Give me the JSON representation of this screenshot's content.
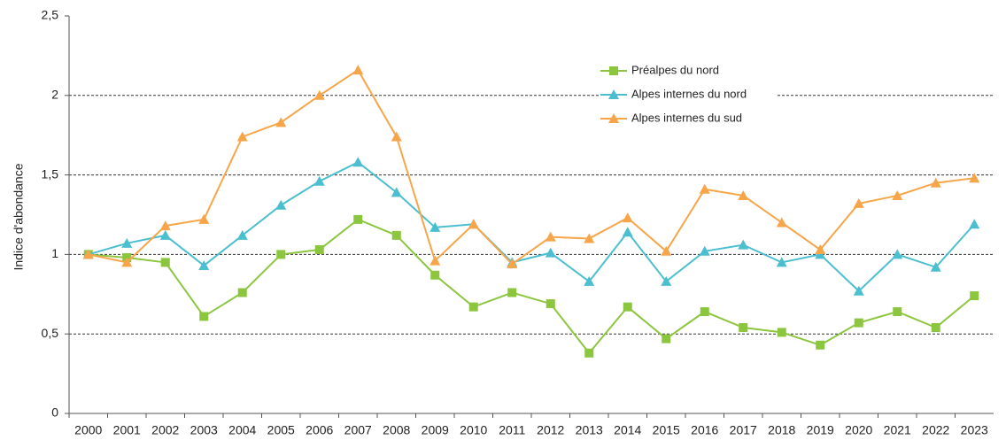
{
  "chart_data": {
    "type": "line",
    "y_label": "Indice d'abondance",
    "categories": [
      "2000",
      "2001",
      "2002",
      "2003",
      "2004",
      "2005",
      "2006",
      "2007",
      "2008",
      "2009",
      "2010",
      "2011",
      "2012",
      "2013",
      "2014",
      "2015",
      "2016",
      "2017",
      "2018",
      "2019",
      "2020",
      "2021",
      "2022",
      "2023"
    ],
    "series": [
      {
        "name": "Préalpes du nord",
        "color": "#8cc63e",
        "marker": "square",
        "values": [
          1.0,
          0.98,
          0.95,
          0.61,
          0.76,
          1.0,
          1.03,
          1.22,
          1.12,
          0.87,
          0.67,
          0.76,
          0.69,
          0.38,
          0.67,
          0.47,
          0.64,
          0.54,
          0.51,
          0.43,
          0.57,
          0.64,
          0.54,
          0.74
        ]
      },
      {
        "name": "Alpes internes du nord",
        "color": "#4bbfd0",
        "marker": "triangle",
        "values": [
          1.0,
          1.07,
          1.12,
          0.93,
          1.12,
          1.31,
          1.46,
          1.58,
          1.39,
          1.17,
          1.19,
          0.95,
          1.01,
          0.83,
          1.14,
          0.83,
          1.02,
          1.06,
          0.95,
          1.0,
          0.77,
          1.0,
          0.92,
          1.19
        ]
      },
      {
        "name": "Alpes internes du sud",
        "color": "#f7a548",
        "marker": "triangle",
        "values": [
          1.0,
          0.95,
          1.18,
          1.22,
          1.74,
          1.83,
          2.0,
          2.16,
          1.74,
          0.96,
          1.19,
          0.94,
          1.11,
          1.1,
          1.23,
          1.02,
          1.41,
          1.37,
          1.2,
          1.03,
          1.32,
          1.37,
          1.45,
          1.48
        ]
      }
    ],
    "ylim": [
      0,
      2.5
    ],
    "yticks": [
      0,
      {
        "value": 0.5,
        "label": "0,5"
      },
      1,
      {
        "value": 1.5,
        "label": "1,5"
      },
      2,
      {
        "value": 2.5,
        "label": "2,5"
      }
    ],
    "grid": true
  }
}
